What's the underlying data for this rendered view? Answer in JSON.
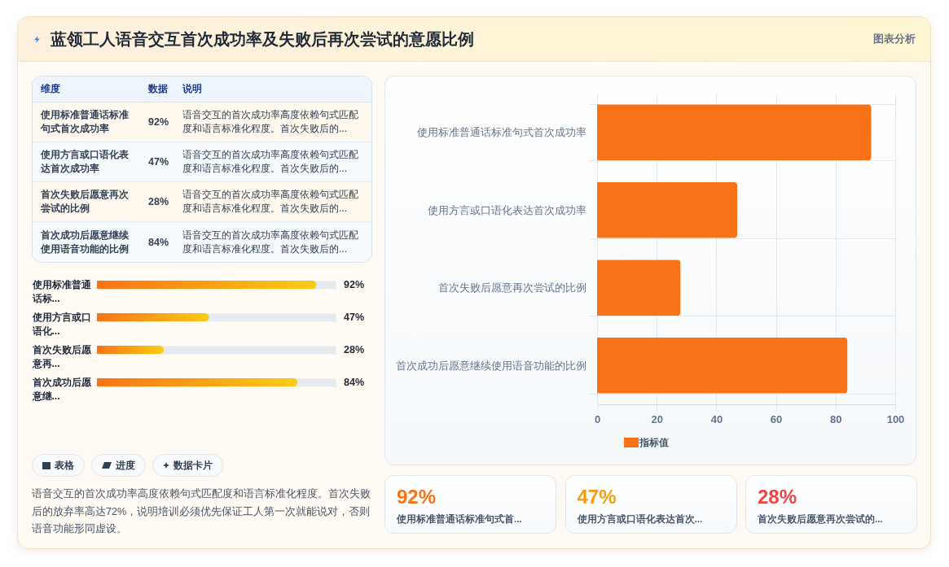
{
  "chart_data": [
    {
      "type": "other",
      "title": "蓝领工人语音交互首次成功率及失败后再次尝试的意愿比例",
      "annotations": [
        "图表分析"
      ]
    },
    {
      "type": "other",
      "categories": [
        "使用标准普通话标准句式首次成功率",
        "使用方言或口语化表达首次成功率",
        "首次失败后愿意再次尝试的比例",
        "首次成功后愿意继续使用语音功能的比例"
      ],
      "value_labels": [
        "92%",
        "47%",
        "28%",
        "84%"
      ],
      "annotations": [
        "维度",
        "数据",
        "说明",
        "语音交互的首次成功率高度依赖句式匹配度和语言标准化程度。首次失败后的...",
        "语音交互的首次成功率高度依赖句式匹配度和语言标准化程度。首次失败后的...",
        "语音交互的首次成功率高度依赖句式匹配度和语言标准化程度。首次失败后的...",
        "语音交互的首次成功率高度依赖句式匹配度和语言标准化程度。首次失败后的..."
      ]
    },
    {
      "type": "bar",
      "orientation": "horizontal",
      "categories": [
        "使用标准普通话标...",
        "使用方言或口语化...",
        "首次失败后愿意再...",
        "首次成功后愿意继..."
      ],
      "values": [
        92,
        47,
        28,
        84
      ],
      "value_labels": [
        "92%",
        "47%",
        "28%",
        "84%"
      ],
      "color": "#f97316",
      "xlim": [
        0,
        100
      ],
      "grid": "y",
      "tick_labels": "y"
    },
    {
      "type": "other",
      "annotations": [
        "表格",
        "进度",
        "数据卡片",
        "语音交互的首次成功率高度依赖句式匹配度和语言标准化程度。首次失败后的放弃率高达72%，说明培训必须优先保证工人第一次就能说对，否则语音功能形同虚设。"
      ]
    },
    {
      "type": "bar",
      "orientation": "horizontal",
      "categories": [
        "使用标准普通话标准句式首次成功率",
        "使用方言或口语化表达首次成功率",
        "首次失败后愿意再次尝试的比例",
        "首次成功后愿意继续使用语音功能的比例"
      ],
      "series": [
        {
          "name": "指标值",
          "color": "#f97316",
          "values": [
            92,
            47,
            28,
            84
          ]
        }
      ],
      "xlim": [
        0,
        100
      ],
      "xticks": [
        0,
        20,
        40,
        60,
        80,
        100
      ],
      "grid": true,
      "legend": "bottom"
    },
    {
      "type": "other",
      "categories": [
        "使用标准普通话标准句式首...",
        "使用方言或口语化表达首次...",
        "首次失败后愿意再次尝试的..."
      ],
      "value_labels": [
        "92%",
        "47%",
        "28%"
      ]
    }
  ]
}
